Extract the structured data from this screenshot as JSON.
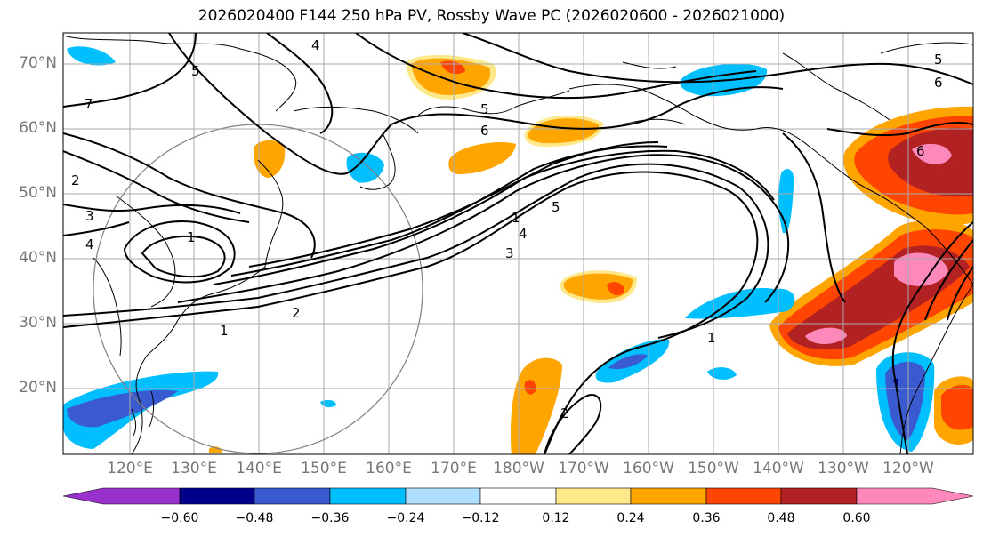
{
  "title": "2026020400 F144 250 hPa PV, Rossby Wave PC (2026020600 - 2026021000)",
  "latitude_labels": [
    "70°N",
    "60°N",
    "50°N",
    "40°N",
    "30°N",
    "20°N"
  ],
  "longitude_labels": [
    "120°E",
    "130°E",
    "140°E",
    "150°E",
    "160°E",
    "170°E",
    "180°W",
    "170°W",
    "160°W",
    "150°W",
    "140°W",
    "130°W",
    "120°W"
  ],
  "colorbar": {
    "tick_labels": [
      "−0.60",
      "−0.48",
      "−0.36",
      "−0.24",
      "−0.12",
      "0.12",
      "0.24",
      "0.36",
      "0.48",
      "0.60"
    ],
    "colors": [
      "#9932cc",
      "#00008b",
      "#3a5bd0",
      "#00bfff",
      "#b0e0ff",
      "#ffffff",
      "#ffe88a",
      "#ffa500",
      "#ff4500",
      "#b22222",
      "#ff88bb"
    ]
  },
  "contour_labels": [
    "4",
    "5",
    "7",
    "5",
    "6",
    "1",
    "5",
    "4",
    "3",
    "2",
    "3",
    "4",
    "1",
    "2",
    "1",
    "1",
    "2",
    "6",
    "6",
    "5"
  ],
  "colors": {
    "coast": "#000000",
    "grid": "#aaaaaa",
    "circle": "#808080"
  }
}
